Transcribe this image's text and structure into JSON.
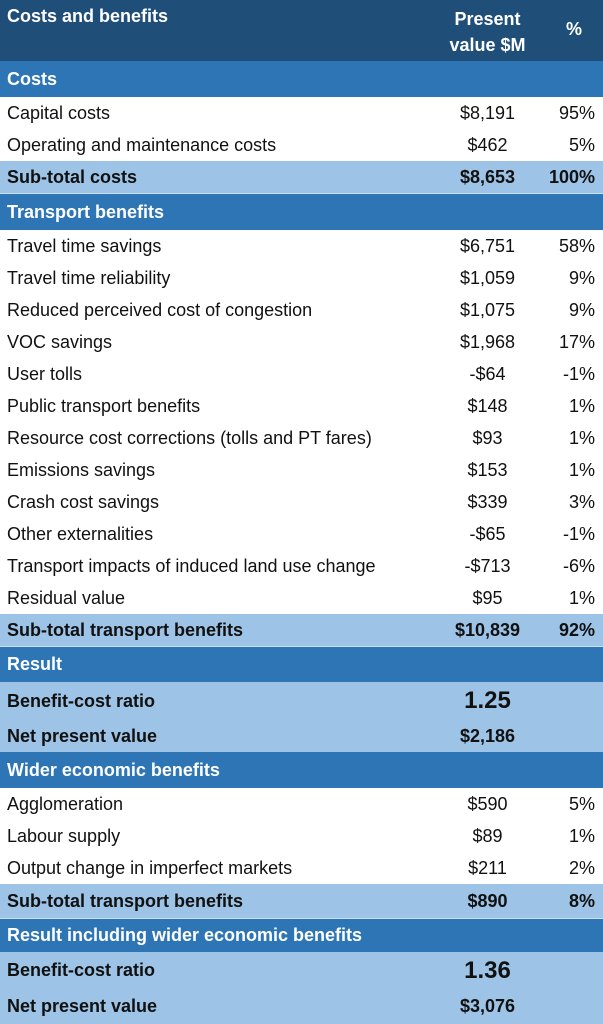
{
  "header": {
    "label": "Costs and benefits",
    "value_line1": "Present",
    "value_line2": "value $M",
    "pct": "%"
  },
  "costs": {
    "title": "Costs",
    "rows": [
      {
        "label": "Capital costs",
        "value": "$8,191",
        "pct": "95%"
      },
      {
        "label": "Operating and maintenance costs",
        "value": "$462",
        "pct": "5%"
      }
    ],
    "subtotal": {
      "label": "Sub-total costs",
      "value": "$8,653",
      "pct": "100%"
    }
  },
  "transport": {
    "title": "Transport benefits",
    "rows": [
      {
        "label": "Travel time savings",
        "value": "$6,751",
        "pct": "58%"
      },
      {
        "label": "Travel time reliability",
        "value": "$1,059",
        "pct": "9%"
      },
      {
        "label": "Reduced perceived cost of congestion",
        "value": "$1,075",
        "pct": "9%"
      },
      {
        "label": "VOC savings",
        "value": "$1,968",
        "pct": "17%"
      },
      {
        "label": "User tolls",
        "value": "-$64",
        "pct": "-1%"
      },
      {
        "label": "Public transport benefits",
        "value": "$148",
        "pct": "1%"
      },
      {
        "label": "Resource cost corrections (tolls and PT fares)",
        "value": "$93",
        "pct": "1%"
      },
      {
        "label": "Emissions savings",
        "value": "$153",
        "pct": "1%"
      },
      {
        "label": "Crash cost savings",
        "value": "$339",
        "pct": "3%"
      },
      {
        "label": "Other externalities",
        "value": "-$65",
        "pct": "-1%"
      },
      {
        "label": "Transport impacts of induced land use change",
        "value": "-$713",
        "pct": "-6%"
      },
      {
        "label": "Residual value",
        "value": "$95",
        "pct": "1%"
      }
    ],
    "subtotal": {
      "label": "Sub-total transport benefits",
      "value": "$10,839",
      "pct": "92%"
    }
  },
  "result": {
    "title": "Result",
    "bcr_label": "Benefit-cost ratio",
    "bcr_value": "1.25",
    "npv_label": "Net present value",
    "npv_value": "$2,186"
  },
  "wider": {
    "title": "Wider economic benefits",
    "rows": [
      {
        "label": "Agglomeration",
        "value": "$590",
        "pct": "5%"
      },
      {
        "label": "Labour supply",
        "value": "$89",
        "pct": "1%"
      },
      {
        "label": "Output change in imperfect markets",
        "value": "$211",
        "pct": "2%"
      }
    ],
    "subtotal": {
      "label": "Sub-total transport benefits",
      "value": "$890",
      "pct": "8%"
    }
  },
  "result_wider": {
    "title": "Result including wider economic benefits",
    "bcr_label": "Benefit-cost ratio",
    "bcr_value": "1.36",
    "npv_label": "Net present value",
    "npv_value": "$3,076"
  },
  "colors": {
    "header_bg": "#1f4e79",
    "section_bg": "#2e75b6",
    "subtotal_bg": "#9dc3e6"
  }
}
